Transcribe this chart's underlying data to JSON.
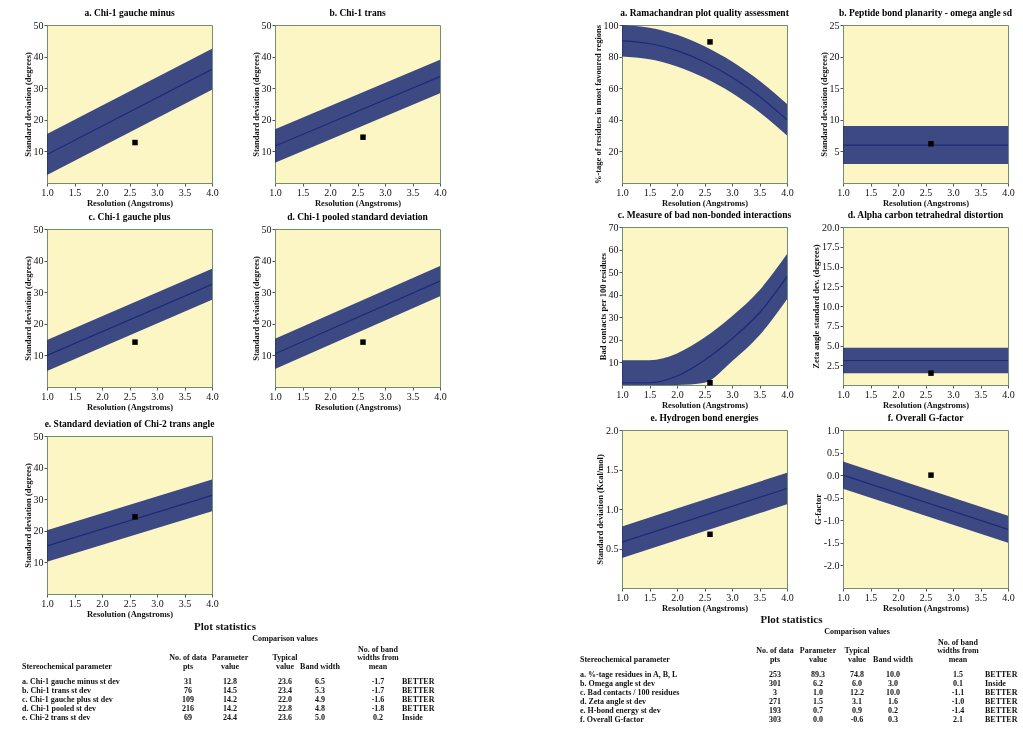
{
  "chart_data": [
    {
      "type": "line",
      "title": "a. Chi-1 gauche minus",
      "xlabel": "Resolution (Angstroms)",
      "ylabel": "Standard deviation (degrees)",
      "xlim": [
        1,
        4
      ],
      "xticks": [
        {
          "value": 1,
          "label": "1.0"
        },
        1.5,
        {
          "value": 2,
          "label": "2.0"
        },
        2.5,
        {
          "value": 3,
          "label": "3.0"
        },
        3.5,
        {
          "value": 4,
          "label": "4.0"
        }
      ],
      "ylim": [
        0,
        50
      ],
      "yticks": [
        10,
        20,
        30,
        40,
        50
      ],
      "series": [
        {
          "type": "line",
          "color": "#1b2a78",
          "x": [
            1,
            4
          ],
          "values": [
            9,
            36
          ],
          "lower": [
            2.5,
            29.5
          ],
          "upper": [
            15.5,
            42.5
          ]
        },
        {
          "type": "scatter",
          "color": "#000000",
          "marker": "square",
          "x": [
            2.6
          ],
          "values": [
            12.8
          ]
        }
      ]
    },
    {
      "type": "line",
      "title": "b. Chi-1 trans",
      "xlabel": "Resolution (Angstroms)",
      "ylabel": "Standard deviation (degrees)",
      "xlim": [
        1,
        4
      ],
      "xticks": [
        {
          "value": 1,
          "label": "1.0"
        },
        1.5,
        {
          "value": 2,
          "label": "2.0"
        },
        2.5,
        {
          "value": 3,
          "label": "3.0"
        },
        3.5,
        {
          "value": 4,
          "label": "4.0"
        }
      ],
      "ylim": [
        0,
        50
      ],
      "yticks": [
        10,
        20,
        30,
        40,
        50
      ],
      "series": [
        {
          "type": "line",
          "color": "#1b2a78",
          "x": [
            1,
            4
          ],
          "values": [
            11.7,
            33.7
          ],
          "lower": [
            6.4,
            28.4
          ],
          "upper": [
            17,
            39
          ]
        },
        {
          "type": "scatter",
          "color": "#000000",
          "marker": "square",
          "x": [
            2.6
          ],
          "values": [
            14.5
          ]
        }
      ]
    },
    {
      "type": "line",
      "title": "c. Chi-1 gauche plus",
      "xlabel": "Resolution (Angstroms)",
      "ylabel": "Standard deviation (degrees)",
      "xlim": [
        1,
        4
      ],
      "xticks": [
        {
          "value": 1,
          "label": "1.0"
        },
        1.5,
        {
          "value": 2,
          "label": "2.0"
        },
        2.5,
        {
          "value": 3,
          "label": "3.0"
        },
        3.5,
        {
          "value": 4,
          "label": "4.0"
        }
      ],
      "ylim": [
        0,
        50
      ],
      "yticks": [
        10,
        20,
        30,
        40,
        50
      ],
      "series": [
        {
          "type": "line",
          "color": "#1b2a78",
          "x": [
            1,
            4
          ],
          "values": [
            10,
            32.5
          ],
          "lower": [
            5.1,
            27.6
          ],
          "upper": [
            14.9,
            37.4
          ]
        },
        {
          "type": "scatter",
          "color": "#000000",
          "marker": "square",
          "x": [
            2.6
          ],
          "values": [
            14.2
          ]
        }
      ]
    },
    {
      "type": "line",
      "title": "d. Chi-1 pooled standard deviation",
      "xlabel": "Resolution (Angstroms)",
      "ylabel": "Standard deviation (degrees)",
      "xlim": [
        1,
        4
      ],
      "xticks": [
        {
          "value": 1,
          "label": "1.0"
        },
        1.5,
        {
          "value": 2,
          "label": "2.0"
        },
        2.5,
        {
          "value": 3,
          "label": "3.0"
        },
        3.5,
        {
          "value": 4,
          "label": "4.0"
        }
      ],
      "ylim": [
        0,
        50
      ],
      "yticks": [
        10,
        20,
        30,
        40,
        50
      ],
      "series": [
        {
          "type": "line",
          "color": "#1b2a78",
          "x": [
            1,
            4
          ],
          "values": [
            10.5,
            33.5
          ],
          "lower": [
            5.7,
            28.7
          ],
          "upper": [
            15.3,
            38.3
          ]
        },
        {
          "type": "scatter",
          "color": "#000000",
          "marker": "square",
          "x": [
            2.6
          ],
          "values": [
            14.2
          ]
        }
      ]
    },
    {
      "type": "line",
      "title": "e. Standard deviation of Chi-2 trans angle",
      "xlabel": "Resolution (Angstroms)",
      "ylabel": "Standard deviation (degrees)",
      "xlim": [
        1,
        4
      ],
      "xticks": [
        {
          "value": 1,
          "label": "1.0"
        },
        1.5,
        {
          "value": 2,
          "label": "2.0"
        },
        2.5,
        {
          "value": 3,
          "label": "3.0"
        },
        3.5,
        {
          "value": 4,
          "label": "4.0"
        }
      ],
      "ylim": [
        0,
        50
      ],
      "yticks": [
        10,
        20,
        30,
        40,
        50
      ],
      "series": [
        {
          "type": "line",
          "color": "#1b2a78",
          "x": [
            1,
            4
          ],
          "values": [
            15.2,
            31.2
          ],
          "lower": [
            10.2,
            26.2
          ],
          "upper": [
            20.2,
            36.2
          ]
        },
        {
          "type": "scatter",
          "color": "#000000",
          "marker": "square",
          "x": [
            2.6
          ],
          "values": [
            24.4
          ]
        }
      ]
    },
    {
      "type": "other",
      "title": "Plot statistics",
      "annotations": [
        "\t\t\tComparison values",
        "Stereochemical parameter\tNo. of data pts\tParameter value\tTypical value\tBand width\tNo. of band widths from mean",
        "a. Chi-1 gauche minus st dev\t31\t12.8\t23.6\t6.5\t-1.7\tBETTER",
        "b. Chi-1 trans st dev\t76\t14.5\t23.4\t5.3\t-1.7\tBETTER",
        "c. Chi-1 gauche plus st dev\t109\t14.2\t22.0\t4.9\t-1.6\tBETTER",
        "d. Chi-1 pooled st dev\t216\t14.2\t22.8\t4.8\t-1.8\tBETTER",
        "e. Chi-2 trans st dev\t69\t24.4\t23.6\t5.0\t0.2\tInside"
      ]
    },
    {
      "type": "line",
      "title": "a. Ramachandran plot quality assessment",
      "xlabel": "Resolution (Angstroms)",
      "ylabel": "%-tage of residues in most favoured regions",
      "xlim": [
        1,
        4
      ],
      "xticks": [
        {
          "value": 1,
          "label": "1.0"
        },
        1.5,
        {
          "value": 2,
          "label": "2.0"
        },
        2.5,
        {
          "value": 3,
          "label": "3.0"
        },
        3.5,
        {
          "value": 4,
          "label": "4.0"
        }
      ],
      "ylim": [
        0,
        100
      ],
      "yticks": [
        20,
        40,
        60,
        80,
        100
      ],
      "series": [
        {
          "type": "line",
          "color": "#1b2a78",
          "x": [
            1,
            1.5,
            2,
            2.5,
            3,
            3.5,
            4
          ],
          "values": [
            90,
            88.3,
            83.8,
            76.6,
            66.9,
            54.7,
            40
          ],
          "lower": [
            80,
            78.3,
            73.8,
            66.6,
            56.9,
            44.7,
            30
          ],
          "upper": [
            100,
            98.3,
            93.8,
            86.6,
            76.9,
            64.7,
            50
          ]
        },
        {
          "type": "scatter",
          "color": "#000000",
          "marker": "square",
          "x": [
            2.6
          ],
          "values": [
            89.3
          ]
        }
      ]
    },
    {
      "type": "line",
      "title": "b. Peptide bond planarity - omega angle sd",
      "xlabel": "Resolution (Angstroms)",
      "ylabel": "Standard deviation (degrees)",
      "xlim": [
        1,
        4
      ],
      "xticks": [
        {
          "value": 1,
          "label": "1.0"
        },
        1.5,
        {
          "value": 2,
          "label": "2.0"
        },
        2.5,
        {
          "value": 3,
          "label": "3.0"
        },
        3.5,
        {
          "value": 4,
          "label": "4.0"
        }
      ],
      "ylim": [
        0,
        25
      ],
      "yticks": [
        5,
        10,
        15,
        20,
        25
      ],
      "series": [
        {
          "type": "line",
          "color": "#1b2a78",
          "x": [
            1,
            4
          ],
          "values": [
            6,
            6
          ],
          "lower": [
            3,
            3
          ],
          "upper": [
            9,
            9
          ]
        },
        {
          "type": "scatter",
          "color": "#000000",
          "marker": "square",
          "x": [
            2.6
          ],
          "values": [
            6.2
          ]
        }
      ]
    },
    {
      "type": "line",
      "title": "c. Measure of bad non-bonded interactions",
      "xlabel": "Resolution (Angstroms)",
      "ylabel": "Bad contacts per 100 residues",
      "xlim": [
        1,
        4
      ],
      "xticks": [
        {
          "value": 1,
          "label": "1.0"
        },
        1.5,
        {
          "value": 2,
          "label": "2.0"
        },
        2.5,
        {
          "value": 3,
          "label": "3.0"
        },
        3.5,
        {
          "value": 4,
          "label": "4.0"
        }
      ],
      "ylim": [
        0,
        70
      ],
      "yticks": [
        10,
        20,
        30,
        40,
        50,
        60,
        70
      ],
      "series": [
        {
          "type": "line",
          "color": "#1b2a78",
          "x": [
            1,
            1.5,
            2,
            2.5,
            3,
            3.5,
            4
          ],
          "values": [
            1,
            1,
            4,
            11,
            20.5,
            32,
            48
          ],
          "lower": [
            0,
            0,
            0,
            1,
            10.5,
            22,
            38
          ],
          "upper": [
            11,
            11,
            14,
            21,
            30.5,
            42,
            58
          ]
        },
        {
          "type": "scatter",
          "color": "#000000",
          "marker": "square",
          "x": [
            2.6
          ],
          "values": [
            1.0
          ]
        }
      ]
    },
    {
      "type": "line",
      "title": "d. Alpha carbon tetrahedral distortion",
      "xlabel": "Resolution (Angstroms)",
      "ylabel": "Zeta angle standard dev. (degrees)",
      "xlim": [
        1,
        4
      ],
      "xticks": [
        {
          "value": 1,
          "label": "1.0"
        },
        1.5,
        {
          "value": 2,
          "label": "2.0"
        },
        2.5,
        {
          "value": 3,
          "label": "3.0"
        },
        3.5,
        {
          "value": 4,
          "label": "4.0"
        }
      ],
      "ylim": [
        0,
        20
      ],
      "yticks": [
        2.5,
        {
          "value": 5,
          "label": "5.0"
        },
        7.5,
        {
          "value": 10,
          "label": "10.0"
        },
        12.5,
        {
          "value": 15,
          "label": "15.0"
        },
        17.5,
        {
          "value": 20,
          "label": "20.0"
        }
      ],
      "series": [
        {
          "type": "line",
          "color": "#1b2a78",
          "x": [
            1,
            4
          ],
          "values": [
            3.1,
            3.1
          ],
          "lower": [
            1.5,
            1.5
          ],
          "upper": [
            4.7,
            4.7
          ]
        },
        {
          "type": "scatter",
          "color": "#000000",
          "marker": "square",
          "x": [
            2.6
          ],
          "values": [
            1.5
          ]
        }
      ]
    },
    {
      "type": "line",
      "title": "e. Hydrogen bond energies",
      "xlabel": "Resolution (Angstroms)",
      "ylabel": "Standard deviation (Kcal/mol)",
      "xlim": [
        1,
        4
      ],
      "xticks": [
        {
          "value": 1,
          "label": "1.0"
        },
        1.5,
        {
          "value": 2,
          "label": "2.0"
        },
        2.5,
        {
          "value": 3,
          "label": "3.0"
        },
        3.5,
        {
          "value": 4,
          "label": "4.0"
        }
      ],
      "ylim": [
        0,
        2
      ],
      "yticks": [
        0.5,
        {
          "value": 1,
          "label": "1.0"
        },
        1.5,
        {
          "value": 2,
          "label": "2.0"
        }
      ],
      "series": [
        {
          "type": "line",
          "color": "#1b2a78",
          "x": [
            1,
            4
          ],
          "values": [
            0.58,
            1.26
          ],
          "lower": [
            0.38,
            1.06
          ],
          "upper": [
            0.78,
            1.46
          ]
        },
        {
          "type": "scatter",
          "color": "#000000",
          "marker": "square",
          "x": [
            2.6
          ],
          "values": [
            0.68
          ]
        }
      ]
    },
    {
      "type": "line",
      "title": "f. Overall G-factor",
      "xlabel": "Resolution (Angstroms)",
      "ylabel": "G-factor",
      "xlim": [
        1,
        4
      ],
      "xticks": [
        {
          "value": 1,
          "label": "1.0"
        },
        1.5,
        {
          "value": 2,
          "label": "2.0"
        },
        2.5,
        {
          "value": 3,
          "label": "3.0"
        },
        3.5,
        {
          "value": 4,
          "label": "4.0"
        }
      ],
      "ylim": [
        -2.5,
        1
      ],
      "yticks": [
        {
          "value": -2,
          "label": "-2.0"
        },
        -1.5,
        {
          "value": -1,
          "label": "-1.0"
        },
        -0.5,
        {
          "value": 0,
          "label": "0.0"
        },
        0.5,
        {
          "value": 1,
          "label": "1.0"
        }
      ],
      "series": [
        {
          "type": "line",
          "color": "#1b2a78",
          "x": [
            1,
            4
          ],
          "values": [
            0,
            -1.2
          ],
          "lower": [
            -0.3,
            -1.5
          ],
          "upper": [
            0.3,
            -0.9
          ]
        },
        {
          "type": "scatter",
          "color": "#000000",
          "marker": "square",
          "x": [
            2.6
          ],
          "values": [
            0.0
          ]
        }
      ]
    },
    {
      "type": "other",
      "title": "Plot statistics",
      "annotations": [
        "\t\t\tComparison values",
        "Stereochemical parameter\tNo. of data pts\tParameter value\tTypical value\tBand width\tNo. of band widths from mean",
        "a. %-tage residues in A, B, L\t253\t89.3\t74.8\t10.0\t1.5\tBETTER",
        "b. Omega angle st dev\t301\t6.2\t6.0\t3.0\t0.1\tInside",
        "c. Bad contacts / 100 residues\t3\t1.0\t12.2\t10.0\t-1.1\tBETTER",
        "d. Zeta angle st dev\t271\t1.5\t3.1\t1.6\t-1.0\tBETTER",
        "e. H-bond energy st dev\t193\t0.7\t0.9\t0.2\t-1.4\tBETTER",
        "f. Overall G-factor\t303\t0.0\t-0.6\t0.3\t2.1\tBETTER"
      ]
    }
  ]
}
